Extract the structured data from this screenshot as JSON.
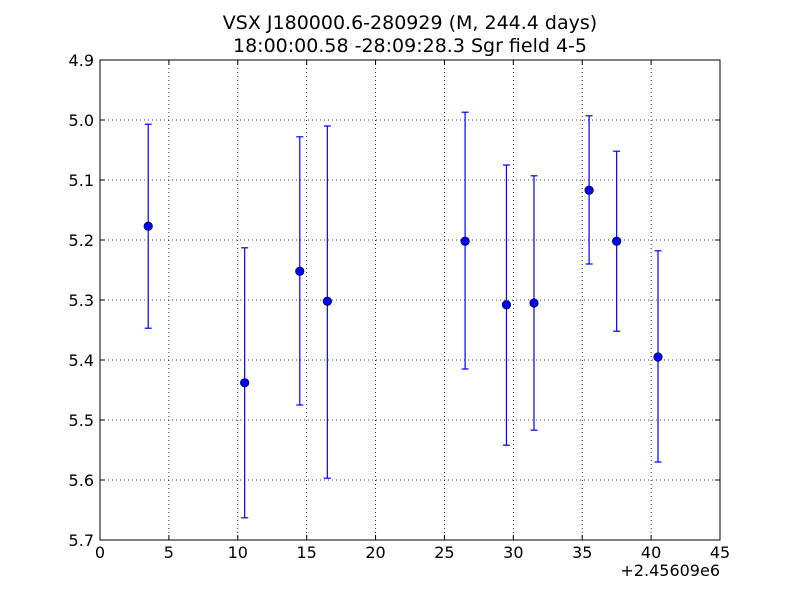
{
  "chart_data": {
    "type": "scatter",
    "title": "VSX J180000.6-280929 (M, 244.4 days)",
    "subtitle": "18:00:00.58 -28:09:28.3 Sgr field 4-5",
    "xlabel": "",
    "ylabel": "",
    "x_offset_label": "+2.45609e6",
    "xlim": [
      0,
      45
    ],
    "ylim": [
      4.9,
      5.7
    ],
    "y_inverted": true,
    "grid": true,
    "x_ticks": [
      0,
      5,
      10,
      15,
      20,
      25,
      30,
      35,
      40,
      45
    ],
    "x_tick_labels": [
      "0",
      "5",
      "10",
      "15",
      "20",
      "25",
      "30",
      "35",
      "40",
      "45"
    ],
    "y_ticks": [
      4.9,
      5.0,
      5.1,
      5.2,
      5.3,
      5.4,
      5.5,
      5.6,
      5.7
    ],
    "y_tick_labels": [
      "4.9",
      "5.0",
      "5.1",
      "5.2",
      "5.3",
      "5.4",
      "5.5",
      "5.6",
      "5.7"
    ],
    "color": "#0000ff",
    "points": [
      {
        "x": 3.5,
        "y": 5.177,
        "err_low": 5.347,
        "err_high": 5.007
      },
      {
        "x": 10.5,
        "y": 5.438,
        "err_low": 5.663,
        "err_high": 5.213
      },
      {
        "x": 14.5,
        "y": 5.252,
        "err_low": 5.475,
        "err_high": 5.028
      },
      {
        "x": 16.5,
        "y": 5.302,
        "err_low": 5.597,
        "err_high": 5.01
      },
      {
        "x": 26.5,
        "y": 5.202,
        "err_low": 5.415,
        "err_high": 4.987
      },
      {
        "x": 29.5,
        "y": 5.308,
        "err_low": 5.542,
        "err_high": 5.075
      },
      {
        "x": 31.5,
        "y": 5.305,
        "err_low": 5.517,
        "err_high": 5.093
      },
      {
        "x": 35.5,
        "y": 5.117,
        "err_low": 5.24,
        "err_high": 4.993
      },
      {
        "x": 37.5,
        "y": 5.202,
        "err_low": 5.352,
        "err_high": 5.052
      },
      {
        "x": 40.5,
        "y": 5.395,
        "err_low": 5.57,
        "err_high": 5.218
      }
    ]
  }
}
